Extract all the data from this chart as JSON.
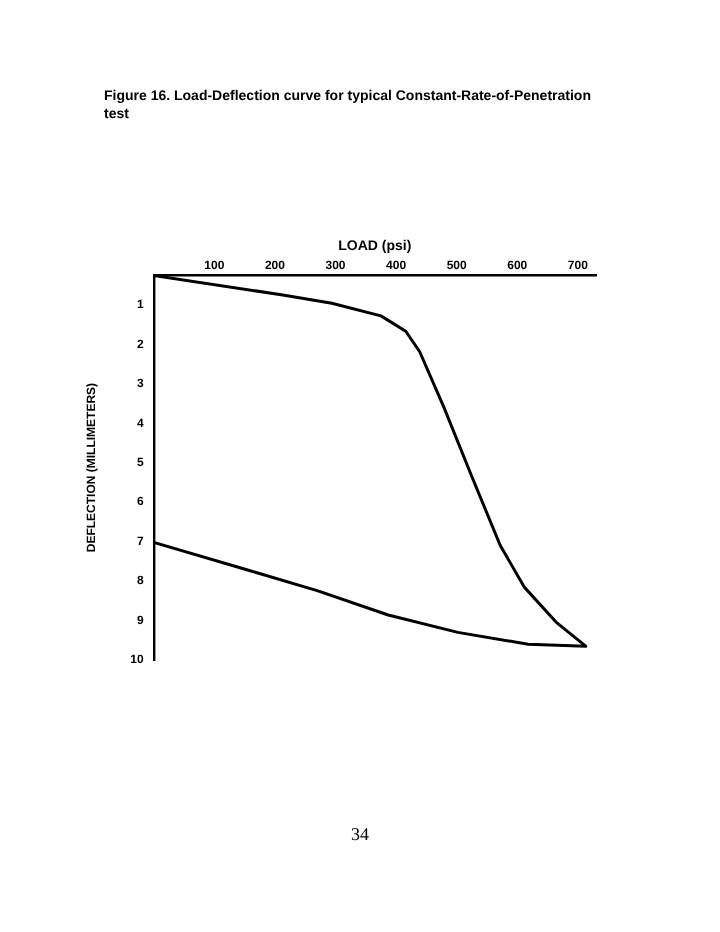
{
  "chart_data": {
    "type": "line",
    "title": "Figure 16.  Load-Deflection curve for typical Constant-Rate-of-Penetration test",
    "xlabel": "LOAD (psi)",
    "ylabel": "DEFLECTION (MILLIMETERS)",
    "series": [
      {
        "color": "#000000",
        "x": [
          0,
          213,
          294,
          375,
          416,
          439,
          479,
          525,
          572,
          612,
          664,
          713,
          618,
          502,
          387,
          271,
          155,
          0
        ],
        "values": [
          0.26,
          0.75,
          0.96,
          1.28,
          1.67,
          2.19,
          3.6,
          5.35,
          7.1,
          8.16,
          9.04,
          9.65,
          9.6,
          9.3,
          8.86,
          8.25,
          7.72,
          7.02
        ]
      }
    ],
    "xlim": [
      0,
      730
    ],
    "xticks": [
      100,
      200,
      300,
      400,
      500,
      600,
      700
    ],
    "ylim": [
      10,
      0.25
    ],
    "yticks": [
      1,
      2,
      3,
      4,
      5,
      6,
      7,
      8,
      9,
      10
    ],
    "grid": false,
    "legend": false,
    "marker": "none",
    "line_style": "solid",
    "annotations": [
      "34"
    ]
  }
}
